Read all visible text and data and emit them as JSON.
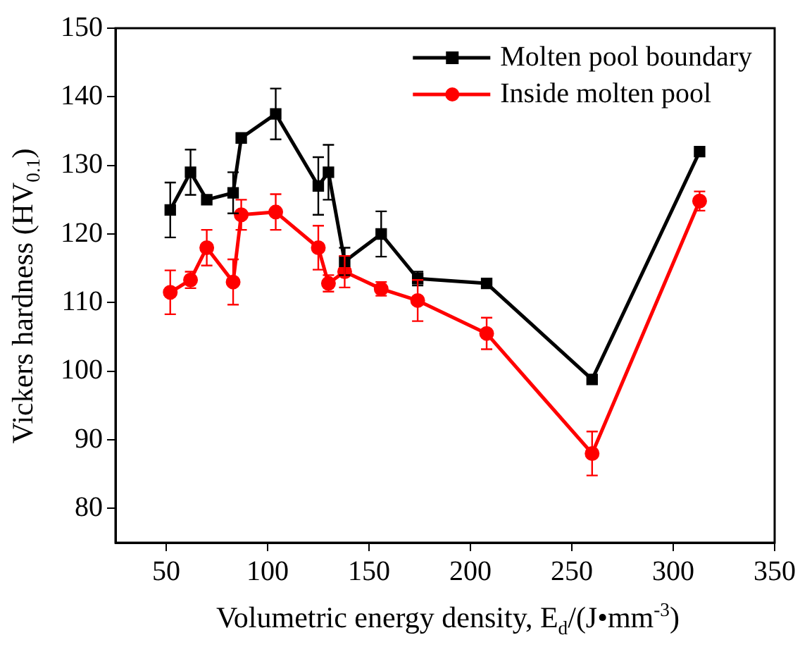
{
  "chart_data": {
    "type": "line",
    "xlabel": "Volumetric energy density, E$_{d}$/(J•mm$^{-3}$)",
    "ylabel": "Vickers hardness (HV$_{0.1}$)",
    "xlim": [
      25,
      350
    ],
    "xticks": [
      50,
      100,
      150,
      200,
      250,
      300,
      350
    ],
    "ylim": [
      75,
      150
    ],
    "yticks": [
      80,
      90,
      100,
      110,
      120,
      130,
      140,
      150
    ],
    "grid": false,
    "legend": "top right",
    "marker": "square",
    "line_style": "solid",
    "series": [
      {
        "name": "Molten pool boundary",
        "color": "#000000",
        "x": [
          52,
          62,
          70,
          83,
          87,
          104,
          125,
          130,
          138,
          156,
          174,
          208,
          260,
          313
        ],
        "values": [
          123.5,
          129,
          125,
          126,
          134,
          137.5,
          127,
          129,
          116,
          120,
          113.5,
          112.8,
          98.8,
          132
        ],
        "errors": [
          4,
          3.3,
          null,
          3,
          null,
          3.7,
          4.2,
          4,
          2,
          3.3,
          1,
          null,
          null,
          null
        ]
      },
      {
        "name": "Inside molten pool",
        "color": "#ff0000",
        "marker": "circle",
        "x": [
          52,
          62,
          70,
          83,
          87,
          104,
          125,
          130,
          138,
          156,
          174,
          208,
          260,
          313
        ],
        "values": [
          111.5,
          113.3,
          118,
          113,
          122.8,
          123.2,
          118,
          112.8,
          114.5,
          112,
          110.3,
          105.5,
          88,
          124.8
        ],
        "errors": [
          3.2,
          1.2,
          2.6,
          3.3,
          2.2,
          2.6,
          3.2,
          1.2,
          2.3,
          1,
          3,
          2.3,
          3.2,
          1.4
        ]
      }
    ]
  }
}
